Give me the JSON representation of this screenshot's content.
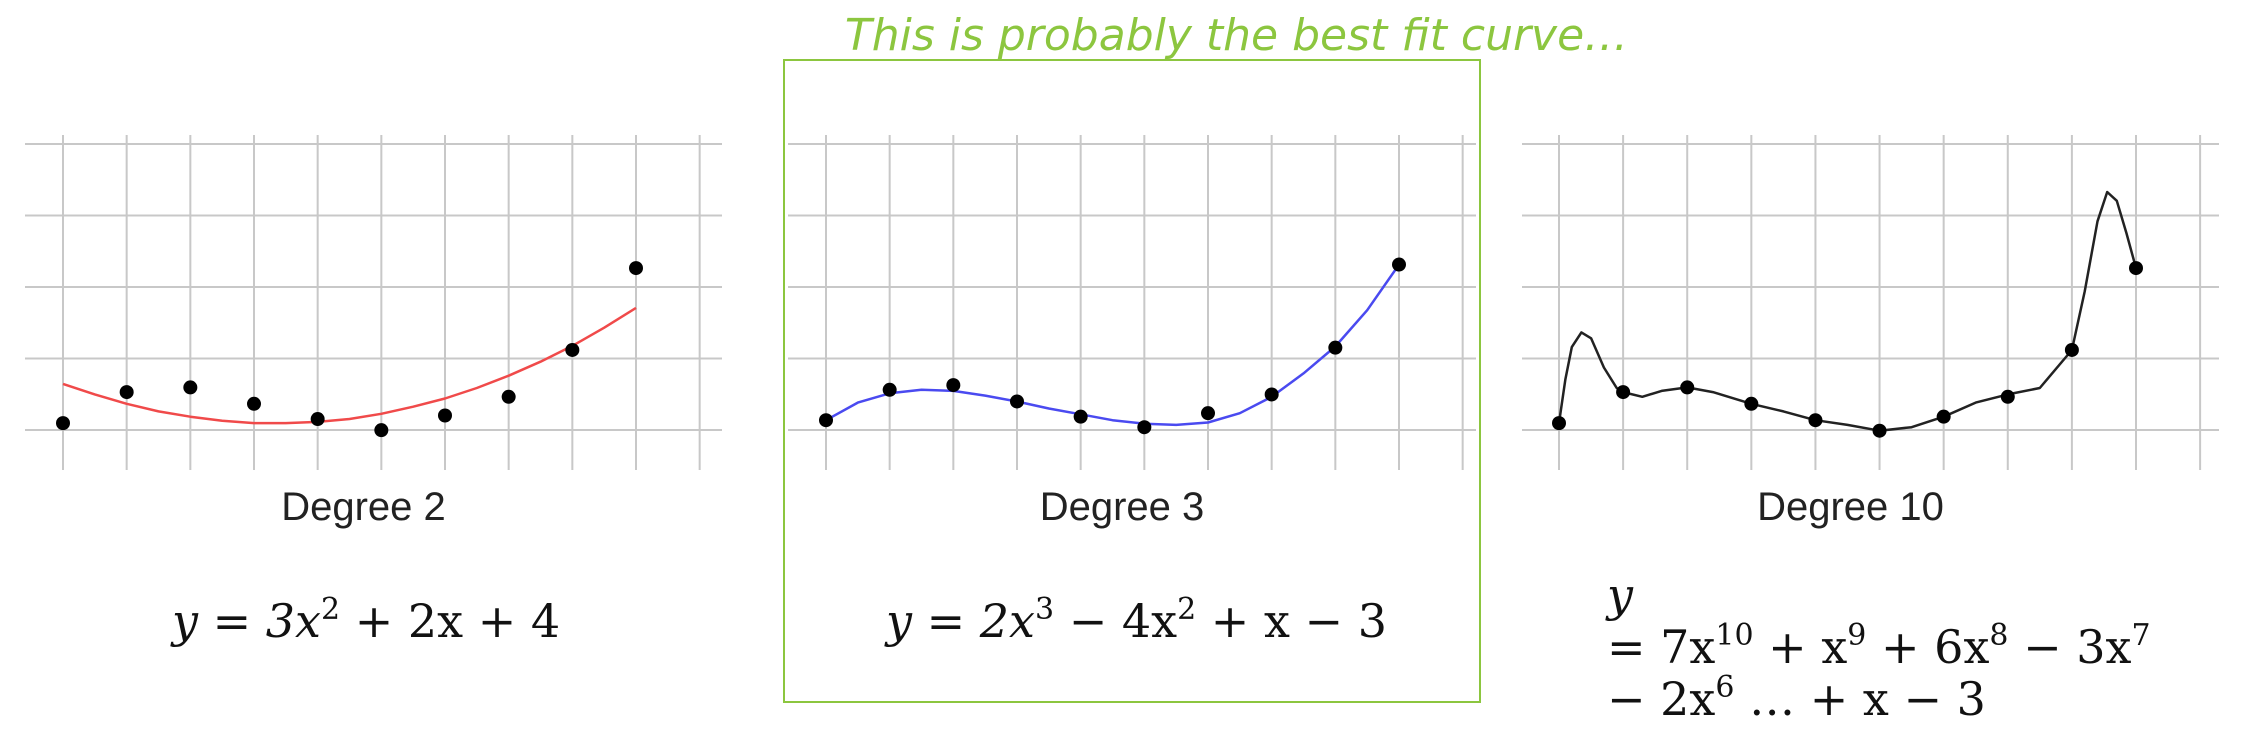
{
  "annotation": "This is probably the best fit curve…",
  "chart_data": [
    {
      "type": "scatter",
      "title": "Degree 2",
      "xlabel": "",
      "ylabel": "",
      "grid": true,
      "xlim": [
        0.5,
        10.5
      ],
      "ylim": [
        0,
        4.7
      ],
      "points_x": [
        1,
        2,
        3,
        4,
        5,
        6,
        7,
        8,
        9,
        10
      ],
      "points_y": [
        0.75,
        1.28,
        1.36,
        1.08,
        0.82,
        0.63,
        0.88,
        1.2,
        2.0,
        3.4
      ],
      "fit_degree": 2,
      "fit_color": "#f04a4a",
      "fit_x": [
        1.0,
        1.5,
        2.0,
        2.5,
        3.0,
        3.5,
        4.0,
        4.5,
        5.0,
        5.5,
        6.0,
        6.5,
        7.0,
        7.5,
        8.0,
        8.5,
        9.0,
        9.5,
        10.0
      ],
      "fit_y": [
        1.42,
        1.24,
        1.08,
        0.95,
        0.86,
        0.79,
        0.75,
        0.75,
        0.77,
        0.82,
        0.91,
        1.03,
        1.17,
        1.35,
        1.56,
        1.8,
        2.07,
        2.38,
        2.72
      ],
      "equation_parts": [
        "y = 3x",
        "2",
        " + 2x + 4"
      ]
    },
    {
      "type": "scatter",
      "title": "Degree 3",
      "xlabel": "",
      "ylabel": "",
      "grid": true,
      "xlim": [
        0.5,
        10.5
      ],
      "ylim": [
        0,
        4.7
      ],
      "points_x": [
        1,
        2,
        3,
        4,
        5,
        6,
        7,
        8,
        9,
        10
      ],
      "points_y": [
        0.8,
        1.32,
        1.4,
        1.12,
        0.86,
        0.68,
        0.92,
        1.24,
        2.04,
        3.46
      ],
      "fit_degree": 3,
      "fit_color": "#4a4af0",
      "fit_x": [
        1.0,
        1.5,
        2.0,
        2.5,
        3.0,
        3.5,
        4.0,
        4.5,
        5.0,
        5.5,
        6.0,
        6.5,
        7.0,
        7.5,
        8.0,
        8.5,
        9.0,
        9.5,
        10.0
      ],
      "fit_y": [
        0.8,
        1.1,
        1.26,
        1.32,
        1.3,
        1.22,
        1.12,
        1.0,
        0.9,
        0.8,
        0.74,
        0.72,
        0.76,
        0.92,
        1.2,
        1.6,
        2.06,
        2.68,
        3.46
      ],
      "equation_parts": [
        "y = 2x",
        "3",
        " − 4x",
        "2",
        " +  x − 3"
      ]
    },
    {
      "type": "scatter",
      "title": "Degree 10",
      "xlabel": "",
      "ylabel": "",
      "grid": true,
      "xlim": [
        0.5,
        10.5
      ],
      "ylim": [
        0,
        4.7
      ],
      "points_x": [
        1,
        2,
        3,
        4,
        5,
        6,
        7,
        8,
        9,
        10
      ],
      "points_y": [
        0.75,
        1.28,
        1.36,
        1.08,
        0.8,
        0.62,
        0.86,
        1.2,
        2.0,
        3.4
      ],
      "fit_degree": 10,
      "fit_color": "#222222",
      "fit_x": [
        1.0,
        1.1,
        1.2,
        1.35,
        1.5,
        1.7,
        1.9,
        2.0,
        2.3,
        2.6,
        3.0,
        3.4,
        4.0,
        4.5,
        5.0,
        5.5,
        6.0,
        6.5,
        7.0,
        7.5,
        8.0,
        8.5,
        9.0,
        9.2,
        9.4,
        9.55,
        9.7,
        9.85,
        10.0
      ],
      "fit_y": [
        0.75,
        1.5,
        2.05,
        2.3,
        2.2,
        1.7,
        1.35,
        1.28,
        1.2,
        1.3,
        1.36,
        1.28,
        1.08,
        0.95,
        0.8,
        0.72,
        0.62,
        0.68,
        0.86,
        1.1,
        1.24,
        1.35,
        2.0,
        3.0,
        4.2,
        4.7,
        4.55,
        4.0,
        3.4
      ],
      "equation_parts": [
        "y",
        "= 7x",
        "10",
        " + x",
        "9",
        " + 6x",
        "8",
        " − 3x",
        "7",
        "− 2x",
        "6",
        " … + x − 3"
      ]
    }
  ]
}
